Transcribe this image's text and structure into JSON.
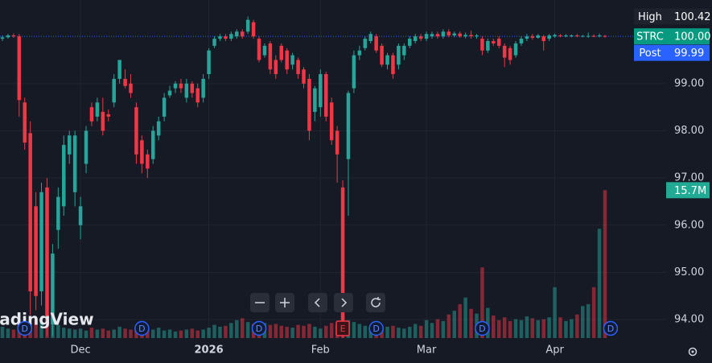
{
  "chart_data": {
    "type": "candlestick",
    "watermark": "TradingView",
    "ylim": [
      93.61,
      100.77
    ],
    "yticks": [
      {
        "value": 94,
        "label": "94.00"
      },
      {
        "value": 95,
        "label": "95.00"
      },
      {
        "value": 96,
        "label": "96.00"
      },
      {
        "value": 97,
        "label": "97.00"
      },
      {
        "value": 98,
        "label": "98.00"
      },
      {
        "value": 99,
        "label": "99.00"
      }
    ],
    "xticks": [
      {
        "value": 14,
        "label": "Dec"
      },
      {
        "value": 37,
        "label": "2026"
      },
      {
        "value": 57,
        "label": "Feb"
      },
      {
        "value": 76,
        "label": "Mar"
      },
      {
        "value": 99,
        "label": "Apr"
      }
    ],
    "up_color": "#26a69a",
    "down_color": "#f23645",
    "ohlc": [
      [
        99.95,
        100.02,
        99.9,
        99.98
      ],
      [
        99.98,
        100.05,
        99.95,
        100.02
      ],
      [
        100.02,
        100.06,
        99.97,
        100.0
      ],
      [
        100.0,
        100.05,
        98.3,
        98.65
      ],
      [
        98.6,
        98.7,
        97.6,
        97.75
      ],
      [
        97.95,
        98.2,
        94.1,
        94.6
      ],
      [
        96.4,
        96.7,
        94.2,
        94.5
      ],
      [
        94.6,
        96.9,
        94.3,
        96.7
      ],
      [
        96.8,
        97.0,
        93.65,
        93.9
      ],
      [
        93.9,
        95.6,
        93.65,
        95.4
      ],
      [
        95.9,
        96.8,
        95.5,
        96.6
      ],
      [
        96.4,
        97.9,
        96.2,
        97.7
      ],
      [
        97.5,
        98.0,
        97.3,
        97.9
      ],
      [
        96.7,
        98.0,
        96.4,
        97.9
      ],
      [
        96.0,
        96.6,
        95.7,
        96.4
      ],
      [
        97.3,
        98.1,
        97.1,
        98.0
      ],
      [
        98.5,
        98.6,
        98.1,
        98.2
      ],
      [
        98.3,
        98.7,
        98.2,
        98.6
      ],
      [
        98.4,
        98.7,
        97.9,
        98.0
      ],
      [
        98.35,
        98.45,
        98.2,
        98.3
      ],
      [
        98.6,
        99.2,
        98.5,
        99.1
      ],
      [
        99.1,
        99.5,
        99.0,
        99.5
      ],
      [
        99.1,
        99.3,
        98.9,
        98.95
      ],
      [
        99.0,
        99.2,
        98.7,
        98.8
      ],
      [
        98.5,
        98.6,
        97.3,
        97.5
      ],
      [
        97.8,
        97.9,
        97.1,
        97.3
      ],
      [
        97.5,
        97.6,
        97.0,
        97.2
      ],
      [
        97.4,
        98.1,
        97.3,
        98.0
      ],
      [
        97.9,
        98.3,
        97.8,
        98.2
      ],
      [
        98.3,
        98.8,
        98.2,
        98.7
      ],
      [
        98.75,
        98.95,
        98.7,
        98.85
      ],
      [
        98.9,
        99.05,
        98.8,
        99.0
      ],
      [
        99.0,
        99.1,
        98.8,
        98.9
      ],
      [
        98.7,
        99.1,
        98.6,
        99.0
      ],
      [
        99.0,
        99.05,
        98.7,
        98.8
      ],
      [
        98.9,
        99.0,
        98.5,
        98.6
      ],
      [
        98.7,
        99.2,
        98.6,
        99.1
      ],
      [
        99.2,
        99.75,
        99.1,
        99.7
      ],
      [
        99.8,
        100.0,
        99.75,
        99.95
      ],
      [
        99.95,
        100.05,
        99.9,
        100.0
      ],
      [
        100.0,
        100.05,
        99.9,
        99.95
      ],
      [
        99.95,
        100.1,
        99.9,
        100.05
      ],
      [
        100.0,
        100.15,
        99.95,
        100.1
      ],
      [
        100.1,
        100.15,
        99.95,
        100.0
      ],
      [
        100.1,
        100.42,
        100.05,
        100.35
      ],
      [
        100.3,
        100.35,
        99.95,
        100.0
      ],
      [
        99.95,
        100.0,
        99.45,
        99.5
      ],
      [
        99.6,
        99.85,
        99.55,
        99.8
      ],
      [
        99.85,
        99.9,
        99.2,
        99.3
      ],
      [
        99.5,
        99.6,
        99.1,
        99.2
      ],
      [
        99.8,
        99.85,
        99.45,
        99.5
      ],
      [
        99.7,
        99.75,
        99.2,
        99.3
      ],
      [
        99.4,
        99.65,
        99.3,
        99.6
      ],
      [
        99.5,
        99.55,
        99.1,
        99.2
      ],
      [
        99.3,
        99.35,
        98.9,
        99.0
      ],
      [
        99.1,
        99.2,
        97.8,
        98.0
      ],
      [
        98.4,
        98.95,
        98.2,
        98.9
      ],
      [
        98.5,
        99.3,
        98.3,
        99.2
      ],
      [
        99.2,
        99.25,
        98.2,
        98.3
      ],
      [
        98.6,
        98.7,
        97.7,
        97.8
      ],
      [
        98.0,
        98.1,
        96.9,
        97.5
      ],
      [
        96.8,
        96.95,
        93.6,
        93.7
      ],
      [
        97.4,
        98.85,
        96.2,
        98.8
      ],
      [
        98.9,
        99.7,
        98.8,
        99.6
      ],
      [
        99.6,
        99.8,
        99.5,
        99.7
      ],
      [
        99.75,
        100.0,
        99.7,
        99.95
      ],
      [
        99.9,
        100.1,
        99.85,
        100.05
      ],
      [
        100.0,
        100.05,
        99.65,
        99.7
      ],
      [
        99.8,
        99.85,
        99.35,
        99.4
      ],
      [
        99.4,
        99.65,
        99.3,
        99.6
      ],
      [
        99.6,
        99.65,
        99.1,
        99.2
      ],
      [
        99.4,
        99.85,
        99.3,
        99.8
      ],
      [
        99.6,
        99.85,
        99.5,
        99.8
      ],
      [
        99.8,
        100.0,
        99.75,
        99.95
      ],
      [
        99.9,
        100.05,
        99.85,
        100.0
      ],
      [
        100.0,
        100.05,
        99.9,
        99.95
      ],
      [
        99.95,
        100.1,
        99.9,
        100.05
      ],
      [
        100.0,
        100.1,
        99.95,
        100.05
      ],
      [
        100.05,
        100.1,
        99.95,
        100.0
      ],
      [
        100.0,
        100.15,
        99.95,
        100.1
      ],
      [
        100.1,
        100.15,
        99.98,
        100.02
      ],
      [
        100.02,
        100.1,
        99.98,
        100.06
      ],
      [
        100.06,
        100.1,
        99.97,
        100.0
      ],
      [
        100.0,
        100.08,
        99.96,
        100.03
      ],
      [
        100.03,
        100.12,
        99.95,
        100.0
      ],
      [
        100.0,
        100.05,
        99.95,
        100.02
      ],
      [
        99.95,
        100.0,
        99.6,
        99.7
      ],
      [
        99.7,
        99.95,
        99.65,
        99.9
      ],
      [
        99.9,
        99.95,
        99.8,
        99.85
      ],
      [
        99.95,
        100.0,
        99.75,
        99.8
      ],
      [
        99.8,
        99.85,
        99.35,
        99.55
      ],
      [
        99.75,
        99.8,
        99.4,
        99.5
      ],
      [
        99.6,
        99.9,
        99.55,
        99.85
      ],
      [
        99.85,
        100.0,
        99.8,
        99.95
      ],
      [
        99.95,
        100.05,
        99.9,
        100.0
      ],
      [
        100.0,
        100.05,
        99.93,
        99.97
      ],
      [
        99.97,
        100.05,
        99.95,
        100.02
      ],
      [
        100.0,
        100.03,
        99.7,
        99.9
      ],
      [
        99.95,
        100.05,
        99.9,
        100.02
      ],
      [
        100.0,
        100.06,
        99.97,
        100.03
      ],
      [
        100.02,
        100.05,
        99.98,
        100.0
      ],
      [
        100.0,
        100.05,
        99.98,
        100.02
      ],
      [
        100.0,
        100.04,
        99.98,
        100.02
      ],
      [
        100.02,
        100.05,
        99.98,
        100.0
      ],
      [
        100.0,
        100.03,
        99.98,
        100.01
      ],
      [
        100.0,
        100.08,
        99.97,
        100.01
      ],
      [
        100.01,
        100.04,
        99.98,
        100.0
      ],
      [
        100.0,
        100.06,
        99.98,
        100.02
      ],
      [
        100.01,
        100.03,
        99.97,
        100.0
      ]
    ],
    "volume": [
      1.2,
      1.0,
      0.9,
      1.5,
      1.8,
      1.6,
      2.0,
      1.7,
      1.3,
      2.2,
      1.4,
      1.1,
      1.0,
      0.9,
      1.0,
      0.8,
      1.1,
      0.9,
      1.0,
      0.8,
      0.9,
      1.2,
      1.0,
      0.9,
      1.1,
      1.3,
      1.0,
      0.9,
      1.1,
      0.8,
      0.9,
      0.7,
      0.8,
      0.9,
      1.0,
      0.8,
      0.9,
      1.1,
      1.4,
      1.2,
      1.3,
      1.6,
      1.9,
      2.1,
      1.7,
      1.5,
      1.8,
      1.6,
      1.4,
      1.5,
      1.3,
      1.2,
      1.1,
      1.4,
      1.3,
      1.5,
      1.2,
      1.0,
      1.3,
      1.6,
      1.4,
      2.4,
      1.9,
      1.7,
      1.5,
      1.3,
      1.2,
      1.1,
      1.0,
      1.2,
      1.3,
      1.1,
      1.0,
      1.2,
      1.5,
      1.3,
      1.9,
      1.6,
      2.0,
      1.8,
      2.5,
      2.9,
      3.6,
      4.3,
      3.1,
      2.6,
      7.5,
      3.2,
      2.4,
      1.9,
      2.2,
      1.8,
      2.0,
      1.9,
      2.3,
      2.1,
      1.9,
      2.0,
      2.2,
      5.4,
      2.2,
      1.8,
      2.0,
      2.5,
      3.4,
      3.6,
      5.4,
      11.6,
      15.7
    ],
    "volume_lim": [
      0,
      35.9
    ],
    "volume_last_label": "15.7M",
    "price_labels": [
      {
        "name": "High",
        "value": 100.42,
        "label": "100.42",
        "color": "#1e222d"
      },
      {
        "name": "STRC",
        "value": 100.0,
        "label": "100.00",
        "color": "#089981"
      },
      {
        "name": "Post",
        "value": 99.99,
        "label": "99.99",
        "color": "#2962ff"
      }
    ],
    "events": [
      {
        "index": 4,
        "label": "D"
      },
      {
        "index": 25,
        "label": "D"
      },
      {
        "index": 46,
        "label": "D"
      },
      {
        "index": 61,
        "label": "E"
      },
      {
        "index": 67,
        "label": "D"
      },
      {
        "index": 86,
        "label": "D"
      },
      {
        "index": 109,
        "label": "D"
      }
    ]
  }
}
